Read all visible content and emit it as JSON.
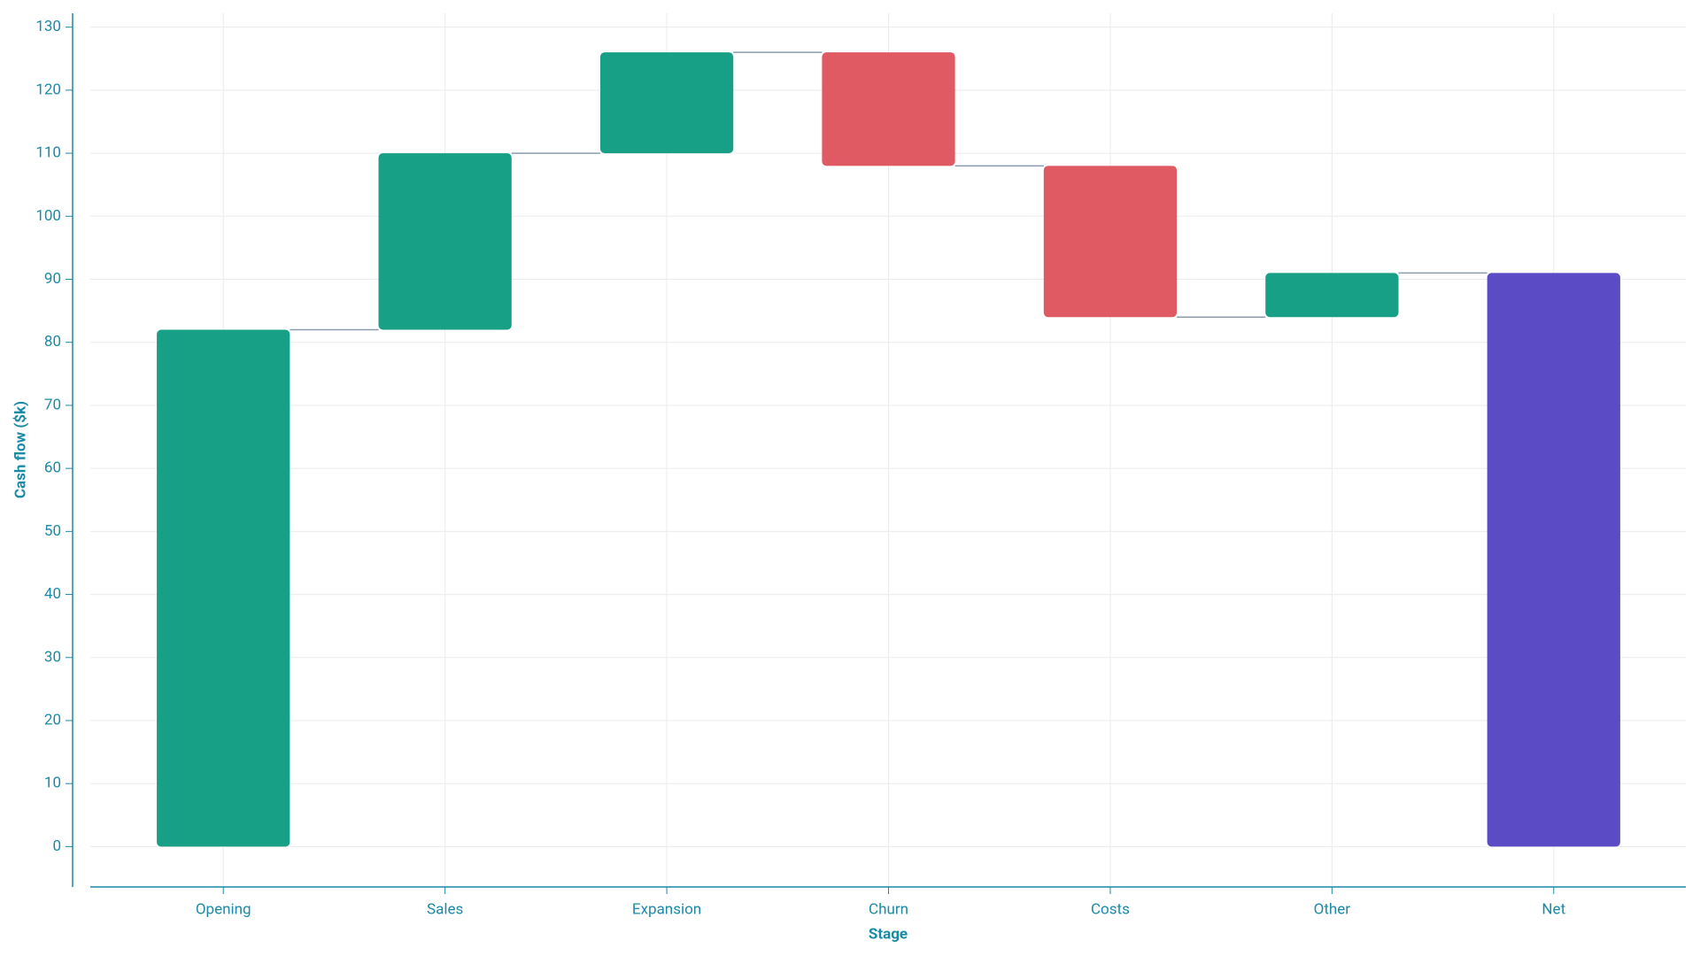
{
  "chart_data": {
    "type": "waterfall",
    "x_label": "Stage",
    "y_label": "Cash flow ($k)",
    "categories": [
      "Opening",
      "Sales",
      "Expansion",
      "Churn",
      "Costs",
      "Other",
      "Net"
    ],
    "values": [
      82,
      28,
      16,
      -18,
      -24,
      7,
      91
    ],
    "is_total": [
      false,
      false,
      false,
      false,
      false,
      false,
      true
    ],
    "colors": [
      "#17a085",
      "#17a085",
      "#17a085",
      "#e05a64",
      "#e05a64",
      "#17a085",
      "#5b4bc4"
    ],
    "ylim": [
      -6.4,
      132.2
    ],
    "yticks": [
      0,
      10,
      20,
      30,
      40,
      50,
      60,
      70,
      80,
      90,
      100,
      110,
      120,
      130
    ],
    "grid": true
  }
}
